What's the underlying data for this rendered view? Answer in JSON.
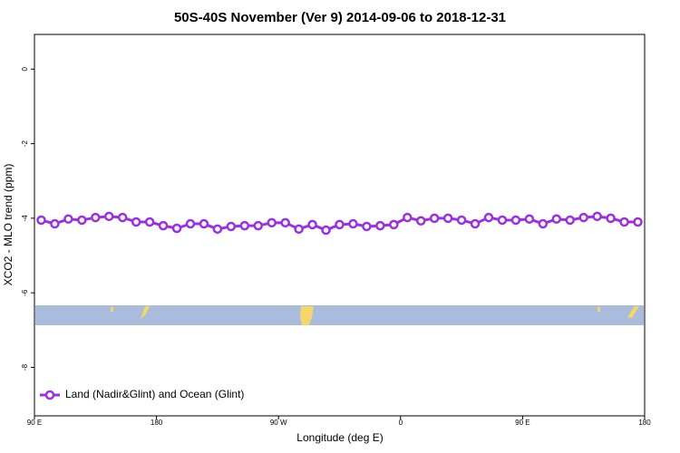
{
  "chart_data": {
    "type": "line",
    "title": "50S-40S November (Ver 9)   2014-09-06 to 2018-12-31",
    "x_label": "Longitude (deg E)",
    "y_label": "XCO2 - MLO trend (ppm)",
    "x": [
      95,
      105,
      115,
      125,
      135,
      145,
      155,
      165,
      175,
      185,
      195,
      205,
      215,
      225,
      235,
      245,
      255,
      265,
      275,
      285,
      295,
      305,
      315,
      325,
      335,
      345,
      355,
      365,
      375,
      385,
      395,
      405,
      415,
      425,
      435,
      445,
      455,
      465,
      475,
      485,
      495,
      505,
      515,
      525,
      535
    ],
    "series": [
      {
        "name": "Land (Nadir&Glint) and Ocean (Glint)",
        "color": "#9b30e0",
        "values": [
          -4.05,
          -4.15,
          -4.02,
          -4.05,
          -3.98,
          -3.95,
          -3.98,
          -4.1,
          -4.1,
          -4.2,
          -4.27,
          -4.15,
          -4.15,
          -4.29,
          -4.22,
          -4.2,
          -4.2,
          -4.12,
          -4.12,
          -4.29,
          -4.17,
          -4.32,
          -4.17,
          -4.15,
          -4.22,
          -4.2,
          -4.17,
          -3.98,
          -4.07,
          -4.0,
          -4.0,
          -4.05,
          -4.15,
          -3.98,
          -4.05,
          -4.05,
          -4.02,
          -4.15,
          -4.02,
          -4.05,
          -3.98,
          -3.95,
          -4.0,
          -4.1,
          -4.1
        ]
      }
    ],
    "xlim": [
      90,
      540
    ],
    "xticks": [
      {
        "value": 90,
        "label": "90 E"
      },
      {
        "value": 180,
        "label": "180"
      },
      {
        "value": 270,
        "label": "90 W"
      },
      {
        "value": 360,
        "label": "0"
      },
      {
        "value": 450,
        "label": "90 E"
      },
      {
        "value": 540,
        "label": "180"
      }
    ],
    "ylim": [
      -9.3,
      0.93
    ],
    "yticks": [
      0,
      -2,
      -4,
      -6,
      -8
    ],
    "legend": "bottom-left"
  }
}
